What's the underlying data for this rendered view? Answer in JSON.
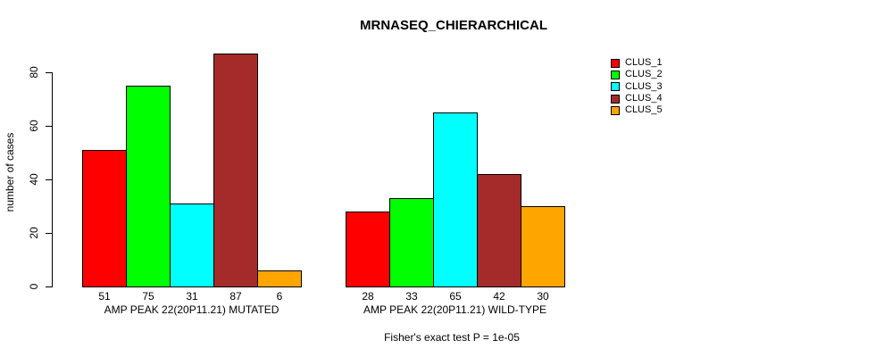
{
  "chart_data": {
    "type": "bar",
    "title": "MRNASEQ_CHIERARCHICAL",
    "xlabel": "",
    "ylabel": "number of cases",
    "ylim": [
      0,
      87
    ],
    "yticks": [
      0,
      20,
      40,
      60,
      80
    ],
    "grid": false,
    "legend_position": "right",
    "categories": [
      "AMP PEAK 22(20P11.21) MUTATED",
      "AMP PEAK 22(20P11.21) WILD-TYPE"
    ],
    "series": [
      {
        "name": "CLUS_1",
        "color": "#FF0000",
        "values": [
          51,
          28
        ]
      },
      {
        "name": "CLUS_2",
        "color": "#00FF00",
        "values": [
          75,
          33
        ]
      },
      {
        "name": "CLUS_3",
        "color": "#00FFFF",
        "values": [
          31,
          65
        ]
      },
      {
        "name": "CLUS_4",
        "color": "#A52A2A",
        "values": [
          87,
          42
        ]
      },
      {
        "name": "CLUS_5",
        "color": "#FFA500",
        "values": [
          6,
          30
        ]
      }
    ],
    "bar_value_labels": {
      "AMP PEAK 22(20P11.21) MUTATED": [
        51,
        75,
        31,
        87,
        6
      ],
      "AMP PEAK 22(20P11.21) WILD-TYPE": [
        28,
        33,
        65,
        42,
        30
      ]
    },
    "annotation": "Fisher's exact test P = 1e-05"
  }
}
